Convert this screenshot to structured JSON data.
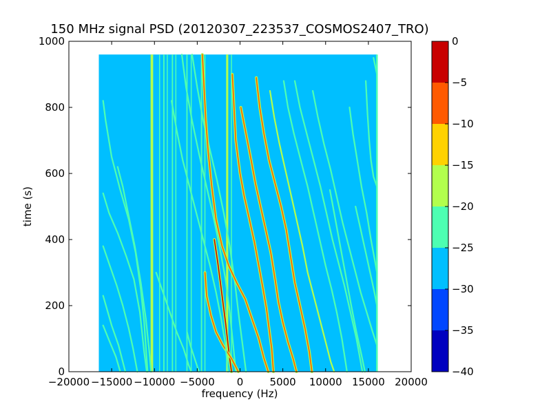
{
  "chart_data": {
    "type": "heatmap",
    "title": "150 MHz signal PSD (20120307_223537_COSMOS2407_TRO)",
    "xlabel": "frequency (Hz)",
    "ylabel": "time (s)",
    "xlim": [
      -20000,
      20000
    ],
    "ylim": [
      0,
      1000
    ],
    "x_ticks": [
      -20000,
      -15000,
      -10000,
      -5000,
      0,
      5000,
      10000,
      15000,
      20000
    ],
    "x_tick_labels": [
      "−20000",
      "−15000",
      "−10000",
      "−5000",
      "0",
      "5000",
      "10000",
      "15000",
      "20000"
    ],
    "y_ticks": [
      0,
      200,
      400,
      600,
      800,
      1000
    ],
    "y_tick_labels": [
      "0",
      "200",
      "400",
      "600",
      "800",
      "1000"
    ],
    "data_extent": {
      "x": [
        -16500,
        16000
      ],
      "y": [
        0,
        960
      ]
    },
    "background_level": -28,
    "colorbar": {
      "range": [
        -40,
        0
      ],
      "ticks": [
        0,
        -5,
        -10,
        -15,
        -20,
        -25,
        -30,
        -35,
        -40
      ],
      "tick_labels": [
        "0",
        "−5",
        "−10",
        "−15",
        "−20",
        "−25",
        "−30",
        "−35",
        "−40"
      ],
      "bands": [
        {
          "from": -40,
          "to": -35,
          "color": "#0000bf"
        },
        {
          "from": -35,
          "to": -30,
          "color": "#0047ff"
        },
        {
          "from": -30,
          "to": -25,
          "color": "#00bfff"
        },
        {
          "from": -25,
          "to": -20,
          "color": "#4dffb2"
        },
        {
          "from": -20,
          "to": -15,
          "color": "#b2ff4d"
        },
        {
          "from": -15,
          "to": -10,
          "color": "#ffd200"
        },
        {
          "from": -10,
          "to": -5,
          "color": "#ff5a00"
        },
        {
          "from": -5,
          "to": 0,
          "color": "#c80000"
        }
      ]
    },
    "vertical_lines": [
      {
        "x": -10300,
        "level": -18,
        "width": 300
      },
      {
        "x": -9400,
        "level": -24,
        "width": 100
      },
      {
        "x": -8900,
        "level": -22,
        "width": 150
      },
      {
        "x": -8500,
        "level": -22,
        "width": 100
      },
      {
        "x": -7900,
        "level": -21,
        "width": 150
      },
      {
        "x": -7500,
        "level": -24,
        "width": 100
      },
      {
        "x": -6200,
        "level": -21,
        "width": 150
      },
      {
        "x": -5700,
        "level": -23,
        "width": 100
      },
      {
        "x": -4500,
        "level": -22,
        "width": 150
      },
      {
        "x": -4100,
        "level": -24,
        "width": 100
      },
      {
        "x": -1500,
        "level": -20,
        "width": 250
      },
      {
        "x": -1000,
        "level": -24,
        "width": 100
      },
      {
        "x": 16000,
        "level": -22,
        "width": 200
      }
    ],
    "series": [
      {
        "level": -22,
        "points": [
          [
            -16000,
            540
          ],
          [
            -15300,
            480
          ],
          [
            -14300,
            420
          ],
          [
            -13300,
            350
          ],
          [
            -12400,
            280
          ],
          [
            -11700,
            180
          ],
          [
            -11200,
            60
          ],
          [
            -10900,
            0
          ]
        ]
      },
      {
        "level": -22,
        "points": [
          [
            -16000,
            820
          ],
          [
            -15700,
            760
          ],
          [
            -15000,
            650
          ],
          [
            -14000,
            550
          ],
          [
            -13000,
            460
          ],
          [
            -12200,
            360
          ],
          [
            -11600,
            250
          ],
          [
            -11200,
            150
          ],
          [
            -10800,
            0
          ]
        ]
      },
      {
        "level": -22,
        "points": [
          [
            -16000,
            380
          ],
          [
            -15200,
            320
          ],
          [
            -14400,
            260
          ],
          [
            -13700,
            200
          ],
          [
            -13000,
            130
          ],
          [
            -12500,
            70
          ],
          [
            -12000,
            0
          ]
        ]
      },
      {
        "level": -23,
        "points": [
          [
            -16000,
            140
          ],
          [
            -15300,
            95
          ],
          [
            -14500,
            45
          ],
          [
            -14000,
            0
          ]
        ]
      },
      {
        "level": -23,
        "points": [
          [
            -16000,
            230
          ],
          [
            -15000,
            140
          ],
          [
            -14200,
            80
          ],
          [
            -13400,
            0
          ]
        ]
      },
      {
        "level": -22,
        "points": [
          [
            -14300,
            620
          ],
          [
            -13700,
            560
          ],
          [
            -13000,
            470
          ],
          [
            -12300,
            380
          ],
          [
            -11600,
            270
          ],
          [
            -11000,
            160
          ],
          [
            -10600,
            60
          ],
          [
            -10400,
            0
          ]
        ]
      },
      {
        "level": -22,
        "points": [
          [
            -6800,
            960
          ],
          [
            -6300,
            860
          ],
          [
            -5600,
            760
          ],
          [
            -4800,
            660
          ],
          [
            -4000,
            570
          ],
          [
            -3200,
            480
          ],
          [
            -2400,
            380
          ],
          [
            -1700,
            280
          ],
          [
            -1200,
            180
          ],
          [
            -800,
            80
          ],
          [
            -500,
            0
          ]
        ]
      },
      {
        "level": -22,
        "points": [
          [
            -5600,
            960
          ],
          [
            -5000,
            860
          ],
          [
            -4300,
            760
          ],
          [
            -3500,
            670
          ],
          [
            -2700,
            580
          ],
          [
            -1900,
            480
          ],
          [
            -1200,
            380
          ],
          [
            -600,
            270
          ],
          [
            -100,
            160
          ],
          [
            400,
            60
          ],
          [
            700,
            0
          ]
        ]
      },
      {
        "level": -4,
        "points": [
          [
            -3000,
            400
          ],
          [
            -2600,
            330
          ],
          [
            -2200,
            250
          ],
          [
            -1700,
            150
          ],
          [
            -1300,
            60
          ],
          [
            -1000,
            0
          ]
        ]
      },
      {
        "level": -8,
        "points": [
          [
            -4400,
            960
          ],
          [
            -4200,
            860
          ],
          [
            -4000,
            760
          ],
          [
            -3700,
            660
          ],
          [
            -3300,
            560
          ],
          [
            -2800,
            460
          ],
          [
            -2100,
            380
          ],
          [
            -1300,
            320
          ],
          [
            -400,
            270
          ],
          [
            600,
            220
          ],
          [
            1400,
            160
          ],
          [
            2200,
            100
          ],
          [
            2800,
            40
          ],
          [
            3300,
            0
          ]
        ]
      },
      {
        "level": -8,
        "points": [
          [
            -900,
            900
          ],
          [
            -700,
            800
          ],
          [
            -500,
            700
          ],
          [
            0,
            600
          ],
          [
            500,
            530
          ],
          [
            1100,
            460
          ],
          [
            1700,
            390
          ],
          [
            2200,
            320
          ],
          [
            2700,
            250
          ],
          [
            3100,
            190
          ],
          [
            3400,
            130
          ],
          [
            3700,
            70
          ],
          [
            3900,
            0
          ]
        ]
      },
      {
        "level": -6,
        "points": [
          [
            -4100,
            300
          ],
          [
            -3900,
            230
          ],
          [
            -3400,
            170
          ],
          [
            -2800,
            120
          ],
          [
            -2000,
            80
          ],
          [
            -1000,
            40
          ],
          [
            -200,
            0
          ]
        ]
      },
      {
        "level": -9,
        "points": [
          [
            100,
            800
          ],
          [
            700,
            720
          ],
          [
            1300,
            640
          ],
          [
            1800,
            570
          ],
          [
            2400,
            500
          ],
          [
            3000,
            430
          ],
          [
            3600,
            360
          ],
          [
            4100,
            280
          ],
          [
            4500,
            210
          ],
          [
            5000,
            150
          ],
          [
            5600,
            90
          ],
          [
            6200,
            40
          ],
          [
            6600,
            0
          ]
        ]
      },
      {
        "level": -9,
        "points": [
          [
            1900,
            890
          ],
          [
            2300,
            800
          ],
          [
            2800,
            720
          ],
          [
            3400,
            640
          ],
          [
            4100,
            570
          ],
          [
            4800,
            500
          ],
          [
            5400,
            430
          ],
          [
            5900,
            350
          ],
          [
            6400,
            270
          ],
          [
            7000,
            200
          ],
          [
            7600,
            130
          ],
          [
            8100,
            60
          ],
          [
            8400,
            0
          ]
        ]
      },
      {
        "level": -20,
        "points": [
          [
            3500,
            850
          ],
          [
            4000,
            770
          ],
          [
            4600,
            690
          ],
          [
            5300,
            610
          ],
          [
            6000,
            530
          ],
          [
            6700,
            450
          ],
          [
            7300,
            380
          ],
          [
            7900,
            300
          ],
          [
            8600,
            230
          ],
          [
            9300,
            160
          ],
          [
            10000,
            90
          ],
          [
            10600,
            30
          ],
          [
            11000,
            0
          ]
        ]
      },
      {
        "level": -21,
        "points": [
          [
            5100,
            880
          ],
          [
            5600,
            800
          ],
          [
            6300,
            720
          ],
          [
            7100,
            640
          ],
          [
            7900,
            560
          ],
          [
            8600,
            480
          ],
          [
            9300,
            400
          ],
          [
            10000,
            320
          ],
          [
            10700,
            250
          ],
          [
            11300,
            180
          ],
          [
            11900,
            100
          ],
          [
            12500,
            0
          ]
        ]
      },
      {
        "level": -22,
        "points": [
          [
            6400,
            880
          ],
          [
            7000,
            800
          ],
          [
            7800,
            720
          ],
          [
            8600,
            640
          ],
          [
            9400,
            560
          ],
          [
            10100,
            480
          ],
          [
            10800,
            400
          ],
          [
            11500,
            330
          ],
          [
            12200,
            260
          ],
          [
            12900,
            180
          ],
          [
            13600,
            100
          ],
          [
            14300,
            0
          ]
        ]
      },
      {
        "level": -23,
        "points": [
          [
            8500,
            850
          ],
          [
            9100,
            770
          ],
          [
            9800,
            690
          ],
          [
            10600,
            610
          ],
          [
            11300,
            530
          ],
          [
            12000,
            450
          ],
          [
            12700,
            380
          ],
          [
            13400,
            310
          ],
          [
            14100,
            240
          ],
          [
            14800,
            180
          ],
          [
            15500,
            120
          ],
          [
            16000,
            80
          ]
        ]
      },
      {
        "level": -22,
        "points": [
          [
            14700,
            880
          ],
          [
            14900,
            780
          ],
          [
            15100,
            700
          ],
          [
            15300,
            640
          ],
          [
            15600,
            590
          ],
          [
            16000,
            560
          ]
        ]
      },
      {
        "level": -23,
        "points": [
          [
            15600,
            950
          ],
          [
            16000,
            900
          ]
        ]
      },
      {
        "level": -23,
        "points": [
          [
            13500,
            500
          ],
          [
            14100,
            430
          ],
          [
            14700,
            360
          ],
          [
            15200,
            300
          ],
          [
            15700,
            240
          ],
          [
            16000,
            200
          ]
        ]
      },
      {
        "level": -21,
        "points": [
          [
            10500,
            550
          ],
          [
            11000,
            480
          ],
          [
            11500,
            410
          ],
          [
            12000,
            340
          ],
          [
            12500,
            270
          ],
          [
            13000,
            200
          ],
          [
            13600,
            120
          ],
          [
            14200,
            50
          ],
          [
            14600,
            0
          ]
        ]
      },
      {
        "level": -22,
        "points": [
          [
            12800,
            800
          ],
          [
            13200,
            720
          ],
          [
            13700,
            640
          ],
          [
            14200,
            560
          ],
          [
            14800,
            480
          ],
          [
            15300,
            400
          ],
          [
            15800,
            330
          ],
          [
            16000,
            300
          ]
        ]
      },
      {
        "level": -22,
        "points": [
          [
            -8000,
            820
          ],
          [
            -7400,
            730
          ],
          [
            -6700,
            640
          ],
          [
            -5900,
            560
          ],
          [
            -5100,
            480
          ],
          [
            -4300,
            400
          ],
          [
            -3500,
            320
          ],
          [
            -2800,
            240
          ],
          [
            -2200,
            160
          ],
          [
            -1700,
            80
          ],
          [
            -1400,
            0
          ]
        ]
      },
      {
        "level": -22,
        "points": [
          [
            -6200,
            120
          ],
          [
            -5800,
            80
          ],
          [
            -5300,
            40
          ],
          [
            -4800,
            0
          ]
        ]
      },
      {
        "level": -22,
        "points": [
          [
            -9800,
            300
          ],
          [
            -9000,
            240
          ],
          [
            -8200,
            180
          ],
          [
            -7400,
            120
          ],
          [
            -6600,
            70
          ],
          [
            -6000,
            20
          ],
          [
            -5700,
            0
          ]
        ]
      }
    ]
  }
}
